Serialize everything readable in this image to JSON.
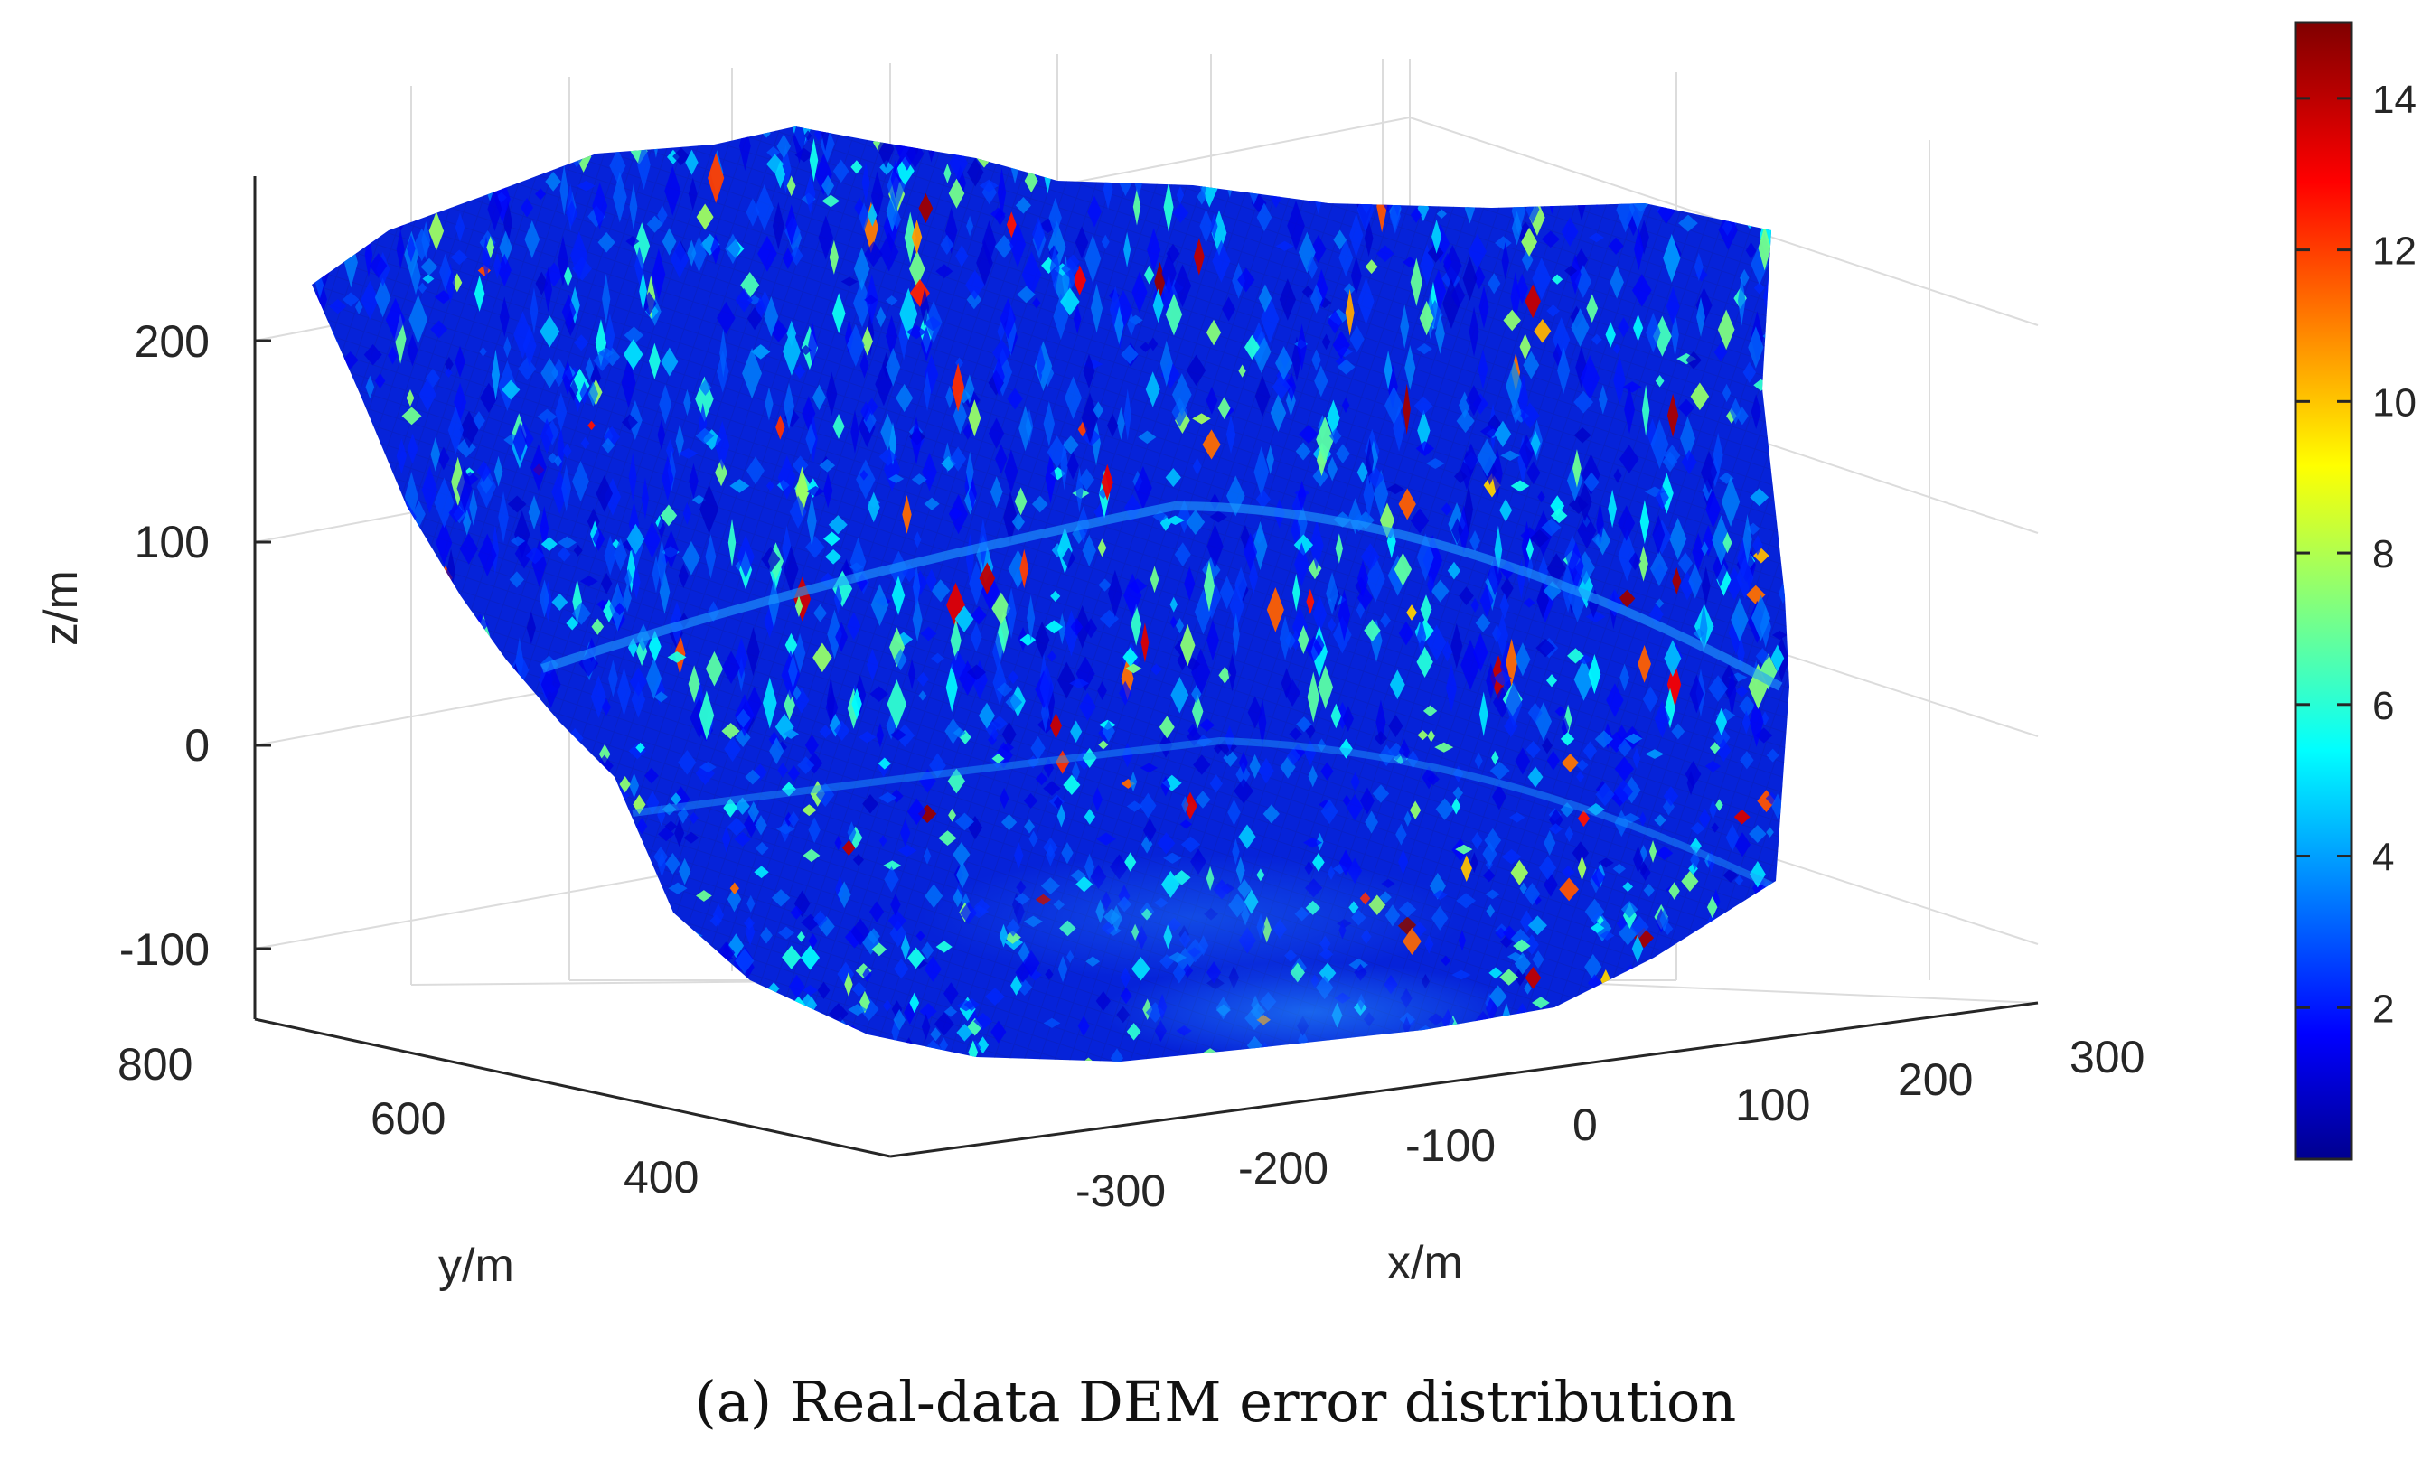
{
  "chart_data": {
    "type": "surface3d",
    "title": "",
    "caption": "(a) Real-data DEM error distribution",
    "colormap": "jet",
    "xlabel": "x/m",
    "ylabel": "y/m",
    "zlabel": "z/m",
    "x_ticks": [
      "-300",
      "-200",
      "-100",
      "0",
      "100",
      "200",
      "300"
    ],
    "y_ticks": [
      "800",
      "600",
      "400"
    ],
    "z_ticks": [
      "200",
      "100",
      "0",
      "-100"
    ],
    "xlim": [
      -350,
      300
    ],
    "ylim": [
      350,
      800
    ],
    "zlim": [
      -135,
      280
    ],
    "colorbar": {
      "min": 0,
      "max": 15,
      "ticks": [
        "14",
        "12",
        "10",
        "8",
        "6",
        "4",
        "2"
      ]
    },
    "error_summary": {
      "dominant_range": [
        1,
        4
      ],
      "hotspot_range": [
        10,
        15
      ],
      "description_levels": [
        2,
        4,
        6,
        8,
        10,
        12,
        14
      ]
    }
  }
}
